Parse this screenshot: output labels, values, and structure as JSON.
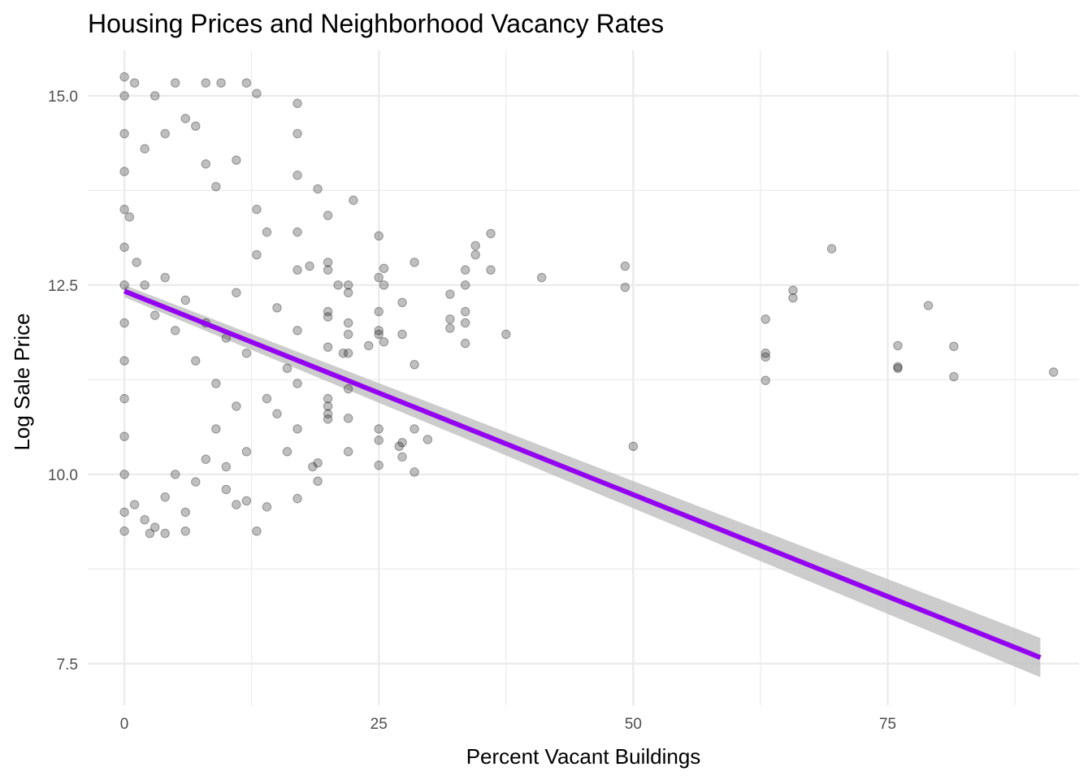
{
  "chart_data": {
    "type": "scatter",
    "title": "Housing Prices and Neighborhood Vacancy Rates",
    "xlabel": "Percent Vacant Buildings",
    "ylabel": "Log Sale Price",
    "xlim": [
      -3.6,
      93.8
    ],
    "ylim": [
      6.95,
      15.6
    ],
    "x_ticks": [
      0,
      25,
      50,
      75
    ],
    "x_tick_labels": [
      "0",
      "25",
      "50",
      "75"
    ],
    "y_ticks": [
      7.5,
      10.0,
      12.5,
      15.0
    ],
    "y_tick_labels": [
      "7.5",
      "10.0",
      "12.5",
      "15.0"
    ],
    "grid": true,
    "legend": "none",
    "colors": {
      "points": "#000000",
      "point_alpha": 0.25,
      "fit_line": "#9400f0",
      "confidence_band": "#bfbfbf",
      "grid": "#ebebeb"
    },
    "series": [
      {
        "kind": "points",
        "points": [
          [
            22.5,
            13.62
          ],
          [
            25.0,
            13.15
          ],
          [
            25.0,
            12.6
          ],
          [
            25.5,
            12.72
          ],
          [
            28.5,
            12.8
          ],
          [
            32.0,
            12.38
          ],
          [
            33.5,
            12.5
          ],
          [
            33.5,
            12.7
          ],
          [
            34.5,
            12.9
          ],
          [
            34.5,
            13.02
          ],
          [
            36.0,
            13.18
          ],
          [
            36.0,
            12.7
          ],
          [
            41.0,
            12.6
          ],
          [
            49.2,
            12.75
          ],
          [
            49.2,
            12.47
          ],
          [
            69.5,
            12.98
          ],
          [
            65.7,
            12.43
          ],
          [
            65.7,
            12.33
          ],
          [
            79.0,
            12.23
          ],
          [
            91.3,
            11.35
          ],
          [
            81.5,
            11.69
          ],
          [
            81.5,
            11.29
          ],
          [
            76.0,
            11.7
          ],
          [
            76.0,
            11.42
          ],
          [
            76.0,
            11.4
          ],
          [
            63.0,
            12.05
          ],
          [
            63.0,
            11.6
          ],
          [
            63.0,
            11.55
          ],
          [
            63.0,
            11.24
          ],
          [
            50.0,
            10.37
          ],
          [
            37.5,
            11.85
          ],
          [
            33.5,
            12.15
          ],
          [
            33.5,
            12.0
          ],
          [
            33.5,
            11.73
          ],
          [
            32.0,
            12.05
          ],
          [
            32.0,
            11.93
          ],
          [
            28.5,
            11.45
          ],
          [
            28.5,
            10.6
          ],
          [
            28.5,
            10.03
          ],
          [
            29.8,
            10.46
          ],
          [
            27.3,
            12.27
          ],
          [
            27.3,
            11.85
          ],
          [
            27.3,
            10.42
          ],
          [
            27.3,
            10.23
          ],
          [
            27.0,
            10.37
          ],
          [
            25.0,
            12.15
          ],
          [
            25.0,
            11.9
          ],
          [
            25.0,
            11.85
          ],
          [
            25.0,
            10.6
          ],
          [
            25.0,
            10.45
          ],
          [
            25.0,
            10.12
          ],
          [
            25.5,
            12.5
          ],
          [
            25.5,
            11.75
          ],
          [
            24.0,
            11.7
          ],
          [
            22.0,
            12.5
          ],
          [
            22.0,
            12.4
          ],
          [
            22.0,
            12.0
          ],
          [
            22.0,
            11.85
          ],
          [
            22.0,
            11.6
          ],
          [
            22.0,
            11.13
          ],
          [
            22.0,
            10.74
          ],
          [
            22.0,
            10.3
          ],
          [
            21.0,
            12.5
          ],
          [
            21.5,
            11.6
          ],
          [
            20.0,
            12.8
          ],
          [
            20.0,
            12.7
          ],
          [
            20.0,
            12.15
          ],
          [
            20.0,
            12.08
          ],
          [
            20.0,
            11.68
          ],
          [
            20.0,
            11.0
          ],
          [
            20.0,
            10.9
          ],
          [
            20.0,
            10.8
          ],
          [
            20.0,
            10.73
          ],
          [
            20.0,
            13.42
          ],
          [
            19.0,
            13.77
          ],
          [
            19.0,
            10.15
          ],
          [
            19.0,
            9.91
          ],
          [
            18.5,
            10.1
          ],
          [
            18.2,
            12.75
          ],
          [
            17.0,
            9.68
          ],
          [
            14.0,
            9.57
          ],
          [
            13.0,
            9.25
          ],
          [
            12.0,
            15.17
          ],
          [
            13.0,
            15.03
          ],
          [
            11.0,
            14.15
          ],
          [
            9.5,
            15.17
          ],
          [
            8.0,
            15.17
          ],
          [
            2.5,
            9.22
          ],
          [
            4.0,
            9.22
          ],
          [
            6.0,
            9.25
          ],
          [
            0.5,
            13.4
          ],
          [
            1.2,
            12.8
          ],
          [
            2.0,
            12.5
          ],
          [
            3.0,
            12.1
          ],
          [
            4.0,
            12.6
          ],
          [
            5.0,
            11.9
          ],
          [
            6.0,
            12.3
          ],
          [
            7.0,
            11.5
          ],
          [
            8.0,
            12.0
          ],
          [
            9.0,
            11.2
          ],
          [
            10.0,
            11.8
          ],
          [
            11.0,
            12.4
          ],
          [
            12.0,
            11.6
          ],
          [
            13.0,
            12.9
          ],
          [
            14.0,
            11.0
          ],
          [
            15.0,
            12.2
          ],
          [
            16.0,
            11.4
          ],
          [
            17.0,
            12.7
          ],
          [
            17.0,
            13.2
          ],
          [
            17.0,
            14.5
          ],
          [
            17.0,
            14.9
          ],
          [
            17.0,
            13.95
          ],
          [
            17.0,
            11.9
          ],
          [
            17.0,
            11.2
          ],
          [
            17.0,
            10.6
          ],
          [
            16.0,
            10.3
          ],
          [
            15.0,
            10.8
          ],
          [
            14.0,
            13.2
          ],
          [
            13.0,
            13.5
          ],
          [
            12.0,
            10.3
          ],
          [
            11.0,
            10.9
          ],
          [
            10.0,
            10.1
          ],
          [
            9.0,
            13.8
          ],
          [
            8.0,
            14.1
          ],
          [
            7.0,
            14.6
          ],
          [
            6.0,
            14.7
          ],
          [
            5.0,
            15.17
          ],
          [
            4.0,
            14.5
          ],
          [
            3.0,
            15.0
          ],
          [
            2.0,
            14.3
          ],
          [
            1.0,
            15.17
          ],
          [
            1.0,
            9.6
          ],
          [
            2.0,
            9.4
          ],
          [
            3.0,
            9.3
          ],
          [
            4.0,
            9.7
          ],
          [
            5.0,
            10.0
          ],
          [
            6.0,
            9.5
          ],
          [
            7.0,
            9.9
          ],
          [
            8.0,
            10.2
          ],
          [
            9.0,
            10.6
          ],
          [
            10.0,
            9.8
          ],
          [
            11.0,
            9.6
          ],
          [
            12.0,
            9.65
          ],
          [
            0.0,
            15.25
          ],
          [
            0.0,
            15.0
          ],
          [
            0.0,
            14.5
          ],
          [
            0.0,
            14.0
          ],
          [
            0.0,
            13.5
          ],
          [
            0.0,
            13.0
          ],
          [
            0.0,
            12.5
          ],
          [
            0.0,
            12.0
          ],
          [
            0.0,
            11.5
          ],
          [
            0.0,
            11.0
          ],
          [
            0.0,
            10.5
          ],
          [
            0.0,
            10.0
          ],
          [
            0.0,
            9.5
          ],
          [
            0.0,
            9.25
          ]
        ]
      },
      {
        "kind": "linear_fit",
        "x": [
          0.0,
          90.0
        ],
        "y": [
          12.42,
          7.58
        ],
        "ci_lower": [
          12.34,
          7.32
        ],
        "ci_upper": [
          12.5,
          7.84
        ]
      }
    ]
  }
}
